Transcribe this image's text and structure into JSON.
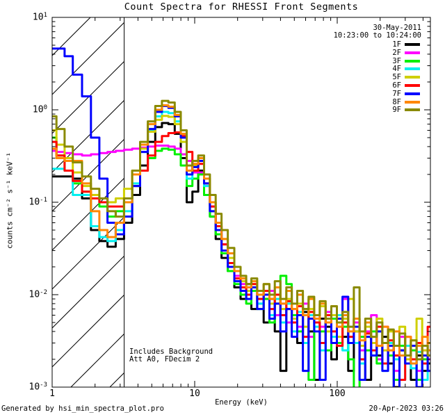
{
  "title": "Count Spectra for RHESSI Front Segments",
  "annotations": {
    "date": "30-May-2011",
    "time_range": "10:23:00 to 10:24:00",
    "note_line1": "Includes Background",
    "note_line2": "Att A0, FDecim 2",
    "footer_left": "Generated by hsi_min_spectra_plot.pro",
    "footer_right": "20-Apr-2023 03:26"
  },
  "chart_data": {
    "type": "line",
    "mode": "histogram-step",
    "title": "Count Spectra for RHESSI Front Segments",
    "xlabel": "Energy (keV)",
    "ylabel": "counts cm⁻² s⁻¹ keV⁻¹",
    "xscale": "log",
    "yscale": "log",
    "xlim": [
      1,
      450
    ],
    "ylim": [
      0.001,
      10
    ],
    "grid": false,
    "legend_position": "top-right-outside",
    "x_major_ticks": [
      {
        "value": 1,
        "label": "1"
      },
      {
        "value": 10,
        "label": "10"
      },
      {
        "value": 100,
        "label": "100"
      }
    ],
    "y_major_ticks": [
      {
        "value": 10,
        "label": "10¹",
        "base": "10",
        "exp": "1"
      },
      {
        "value": 1,
        "label": "10⁰",
        "base": "10",
        "exp": "0"
      },
      {
        "value": 0.1,
        "label": "10⁻¹",
        "base": "10",
        "exp": "-1"
      },
      {
        "value": 0.01,
        "label": "10⁻²",
        "base": "10",
        "exp": "-2"
      },
      {
        "value": 0.001,
        "label": "10⁻³",
        "base": "10",
        "exp": "-3"
      }
    ],
    "excluded_region": {
      "x_min": 1,
      "x_max": 3.2,
      "style": "diagonal-hatch"
    },
    "energies_keV": [
      1.0,
      1.15,
      1.3,
      1.5,
      1.75,
      2.0,
      2.3,
      2.6,
      3.0,
      3.4,
      3.9,
      4.4,
      5.0,
      5.6,
      6.2,
      6.9,
      7.6,
      8.4,
      9.2,
      10.1,
      11.1,
      12.2,
      13.4,
      14.7,
      16.2,
      18.0,
      20,
      22,
      24,
      26,
      29,
      32,
      35,
      38,
      42,
      46,
      50,
      55,
      60,
      66,
      72,
      79,
      87,
      95,
      104,
      114,
      125,
      137,
      150,
      165,
      181,
      198,
      217,
      238,
      261,
      286,
      314,
      344,
      377,
      413,
      450
    ],
    "series": [
      {
        "name": "1F",
        "color": "#000000",
        "values": [
          0.19,
          0.19,
          0.19,
          0.18,
          0.11,
          0.05,
          0.038,
          0.033,
          0.04,
          0.06,
          0.12,
          0.25,
          0.45,
          0.65,
          0.72,
          0.7,
          0.55,
          0.3,
          0.1,
          0.13,
          0.22,
          0.12,
          0.07,
          0.04,
          0.025,
          0.018,
          0.012,
          0.009,
          0.013,
          0.007,
          0.01,
          0.005,
          0.009,
          0.004,
          0.0015,
          0.007,
          0.0055,
          0.003,
          0.0065,
          0.004,
          0.0012,
          0.0055,
          0.0045,
          0.002,
          0.005,
          0.0035,
          0.0015,
          0.004,
          0.0028,
          0.0012,
          0.003,
          0.0022,
          0.0035,
          0.0018,
          0.001,
          0.0025,
          0.0018,
          0.0012,
          0.0022,
          0.0015,
          0.0018
        ]
      },
      {
        "name": "2F",
        "color": "#ff00ff",
        "values": [
          0.36,
          0.35,
          0.34,
          0.33,
          0.32,
          0.33,
          0.34,
          0.35,
          0.36,
          0.37,
          0.38,
          0.39,
          0.4,
          0.41,
          0.41,
          0.4,
          0.38,
          0.33,
          0.28,
          0.21,
          0.21,
          0.15,
          0.09,
          0.055,
          0.035,
          0.022,
          0.016,
          0.013,
          0.01,
          0.012,
          0.008,
          0.009,
          0.011,
          0.006,
          0.008,
          0.005,
          0.007,
          0.0045,
          0.008,
          0.0035,
          0.006,
          0.0045,
          0.0065,
          0.003,
          0.0045,
          0.009,
          0.0035,
          0.005,
          0.0025,
          0.004,
          0.006,
          0.002,
          0.0045,
          0.0028,
          0.0015,
          0.0035,
          0.0022,
          0.0028,
          0.0015,
          0.0025,
          0.002
        ]
      },
      {
        "name": "3F",
        "color": "#00f000",
        "values": [
          0.5,
          0.32,
          0.22,
          0.16,
          0.13,
          0.11,
          0.09,
          0.07,
          0.08,
          0.1,
          0.15,
          0.22,
          0.3,
          0.36,
          0.38,
          0.37,
          0.33,
          0.25,
          0.15,
          0.18,
          0.2,
          0.12,
          0.07,
          0.045,
          0.028,
          0.018,
          0.013,
          0.01,
          0.008,
          0.011,
          0.007,
          0.009,
          0.005,
          0.008,
          0.016,
          0.013,
          0.006,
          0.004,
          0.007,
          0.0012,
          0.005,
          0.004,
          0.0025,
          0.0055,
          0.003,
          0.0045,
          0.002,
          0.0008,
          0.0035,
          0.0025,
          0.004,
          0.0018,
          0.003,
          0.0022,
          0.0012,
          0.0028,
          0.0018,
          0.0025,
          0.0012,
          0.002,
          0.0015
        ]
      },
      {
        "name": "4F",
        "color": "#00f0f0",
        "values": [
          0.23,
          0.23,
          0.22,
          0.12,
          0.12,
          0.055,
          0.042,
          0.038,
          0.05,
          0.08,
          0.16,
          0.35,
          0.6,
          0.85,
          0.95,
          0.92,
          0.75,
          0.45,
          0.18,
          0.22,
          0.28,
          0.15,
          0.08,
          0.05,
          0.03,
          0.02,
          0.014,
          0.011,
          0.009,
          0.012,
          0.008,
          0.01,
          0.006,
          0.009,
          0.005,
          0.008,
          0.004,
          0.0065,
          0.003,
          0.006,
          0.0045,
          0.0025,
          0.0055,
          0.0035,
          0.006,
          0.0025,
          0.0045,
          0.003,
          0.0018,
          0.0035,
          0.0022,
          0.004,
          0.0015,
          0.003,
          0.002,
          0.0012,
          0.0028,
          0.0016,
          0.0024,
          0.0012,
          0.0022
        ]
      },
      {
        "name": "5F",
        "color": "#cfcf00",
        "values": [
          0.6,
          0.42,
          0.3,
          0.21,
          0.15,
          0.12,
          0.11,
          0.1,
          0.11,
          0.14,
          0.22,
          0.38,
          0.58,
          0.78,
          0.86,
          0.84,
          0.7,
          0.45,
          0.2,
          0.25,
          0.3,
          0.18,
          0.1,
          0.06,
          0.04,
          0.025,
          0.018,
          0.014,
          0.011,
          0.013,
          0.009,
          0.011,
          0.008,
          0.01,
          0.007,
          0.009,
          0.0055,
          0.008,
          0.0045,
          0.007,
          0.005,
          0.0075,
          0.004,
          0.006,
          0.0035,
          0.0055,
          0.009,
          0.004,
          0.0028,
          0.0045,
          0.003,
          0.0055,
          0.0025,
          0.004,
          0.0028,
          0.0045,
          0.002,
          0.0032,
          0.0055,
          0.0025,
          0.003
        ]
      },
      {
        "name": "6F",
        "color": "#ff0000",
        "values": [
          0.45,
          0.32,
          0.22,
          0.17,
          0.13,
          0.11,
          0.1,
          0.09,
          0.09,
          0.11,
          0.15,
          0.22,
          0.32,
          0.45,
          0.52,
          0.56,
          0.57,
          0.52,
          0.35,
          0.22,
          0.26,
          0.16,
          0.09,
          0.055,
          0.035,
          0.022,
          0.015,
          0.012,
          0.01,
          0.013,
          0.009,
          0.011,
          0.007,
          0.01,
          0.006,
          0.0085,
          0.005,
          0.0075,
          0.0035,
          0.0065,
          0.005,
          0.003,
          0.006,
          0.004,
          0.0028,
          0.005,
          0.0035,
          0.0055,
          0.002,
          0.0038,
          0.0025,
          0.0045,
          0.0018,
          0.0032,
          0.0022,
          0.0012,
          0.0035,
          0.002,
          0.003,
          0.0018,
          0.0045
        ]
      },
      {
        "name": "7F",
        "color": "#0000ff",
        "values": [
          4.6,
          4.6,
          3.8,
          2.4,
          1.4,
          0.5,
          0.18,
          0.06,
          0.045,
          0.07,
          0.15,
          0.35,
          0.62,
          0.95,
          1.1,
          1.05,
          0.85,
          0.5,
          0.2,
          0.24,
          0.28,
          0.16,
          0.08,
          0.05,
          0.03,
          0.02,
          0.014,
          0.011,
          0.009,
          0.012,
          0.007,
          0.01,
          0.0055,
          0.008,
          0.004,
          0.007,
          0.0035,
          0.006,
          0.0015,
          0.0055,
          0.004,
          0.0012,
          0.005,
          0.003,
          0.0055,
          0.0095,
          0.003,
          0.0045,
          0.0012,
          0.0035,
          0.0022,
          0.004,
          0.0015,
          0.0028,
          0.0008,
          0.0025,
          0.0018,
          0.0028,
          0.001,
          0.0022,
          0.0015
        ]
      },
      {
        "name": "8F",
        "color": "#ff8700",
        "values": [
          0.38,
          0.3,
          0.28,
          0.28,
          0.16,
          0.08,
          0.05,
          0.042,
          0.06,
          0.1,
          0.2,
          0.42,
          0.7,
          1.0,
          1.12,
          1.08,
          0.88,
          0.55,
          0.22,
          0.26,
          0.3,
          0.18,
          0.1,
          0.06,
          0.04,
          0.028,
          0.018,
          0.015,
          0.012,
          0.014,
          0.01,
          0.013,
          0.009,
          0.012,
          0.008,
          0.011,
          0.007,
          0.01,
          0.006,
          0.009,
          0.0055,
          0.008,
          0.005,
          0.0075,
          0.0045,
          0.006,
          0.004,
          0.0055,
          0.0032,
          0.005,
          0.0035,
          0.0028,
          0.0045,
          0.0025,
          0.004,
          0.0022,
          0.0035,
          0.0018,
          0.0028,
          0.0035,
          0.0025
        ]
      },
      {
        "name": "9F",
        "color": "#8a8a00",
        "values": [
          0.85,
          0.62,
          0.4,
          0.27,
          0.19,
          0.14,
          0.11,
          0.08,
          0.07,
          0.11,
          0.22,
          0.45,
          0.75,
          1.1,
          1.25,
          1.2,
          0.95,
          0.6,
          0.25,
          0.28,
          0.32,
          0.2,
          0.12,
          0.075,
          0.05,
          0.032,
          0.02,
          0.016,
          0.013,
          0.015,
          0.011,
          0.013,
          0.01,
          0.014,
          0.009,
          0.012,
          0.008,
          0.011,
          0.007,
          0.0095,
          0.006,
          0.0085,
          0.0055,
          0.0075,
          0.005,
          0.0065,
          0.0045,
          0.012,
          0.004,
          0.0055,
          0.0035,
          0.005,
          0.003,
          0.0042,
          0.0028,
          0.0038,
          0.0022,
          0.0032,
          0.002,
          0.0028,
          0.0022
        ]
      }
    ]
  }
}
